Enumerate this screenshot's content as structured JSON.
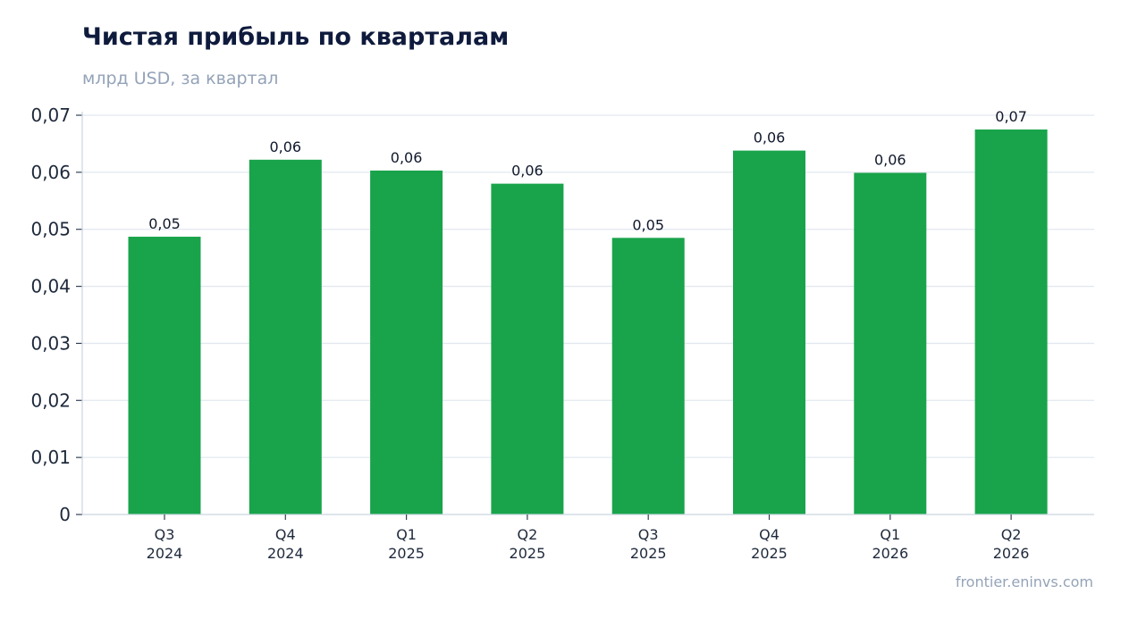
{
  "header": {
    "title": "Чистая прибыль по кварталам",
    "subtitle": "млрд USD, за квартал"
  },
  "footer": {
    "source": "frontier.eninvs.com"
  },
  "colors": {
    "bar": "#19a44b",
    "grid": "#e2e8f0",
    "axis": "#cbd5e1"
  },
  "chart_data": {
    "type": "bar",
    "categories": [
      [
        "Q3",
        "2024"
      ],
      [
        "Q4",
        "2024"
      ],
      [
        "Q1",
        "2025"
      ],
      [
        "Q2",
        "2025"
      ],
      [
        "Q3",
        "2025"
      ],
      [
        "Q4",
        "2025"
      ],
      [
        "Q1",
        "2026"
      ],
      [
        "Q2",
        "2026"
      ]
    ],
    "values": [
      0.0487,
      0.0622,
      0.0603,
      0.058,
      0.0485,
      0.0638,
      0.0599,
      0.0675
    ],
    "data_labels": [
      "0,05",
      "0,06",
      "0,06",
      "0,06",
      "0,05",
      "0,06",
      "0,06",
      "0,07"
    ],
    "yticks": [
      0,
      0.01,
      0.02,
      0.03,
      0.04,
      0.05,
      0.06,
      0.07
    ],
    "ytick_labels": [
      "0",
      "0,01",
      "0,02",
      "0,03",
      "0,04",
      "0,05",
      "0,06",
      "0,07"
    ],
    "ylim": [
      0,
      0.07
    ],
    "grid": true
  }
}
